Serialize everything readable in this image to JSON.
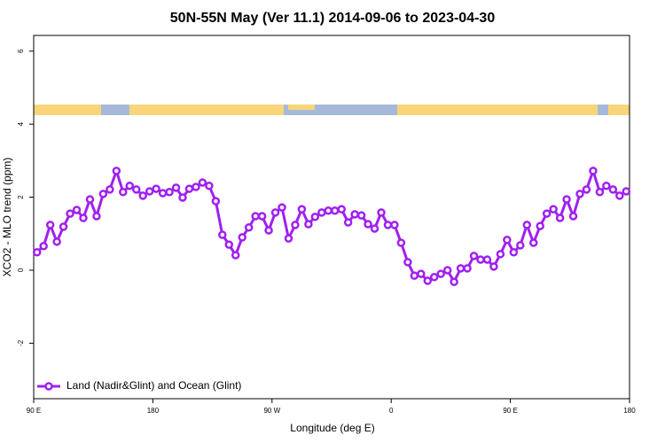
{
  "chart_data": {
    "type": "line",
    "title": "50N-55N May (Ver 11.1)   2014-09-06 to 2023-04-30",
    "x_label": "Longitude (deg E)",
    "y_label": "XCO2 - MLO trend (ppm)",
    "xlim": [
      90,
      540
    ],
    "xticks": [
      {
        "value": 90,
        "label": "90 E"
      },
      180,
      {
        "value": 270,
        "label": "90 W"
      },
      {
        "value": 360,
        "label": "0"
      },
      {
        "value": 450,
        "label": "90 E"
      },
      {
        "value": 540,
        "label": "180"
      }
    ],
    "ylim": [
      -3.52,
      6.43
    ],
    "yticks": [
      -2,
      0,
      2,
      4,
      6
    ],
    "legend": "bottom left",
    "x": [
      92.5,
      97.5,
      102.5,
      107.5,
      112.5,
      117.5,
      122.5,
      127.5,
      132.5,
      137.5,
      142.5,
      147.5,
      152.5,
      157.5,
      162.5,
      167.5,
      172.5,
      177.5,
      182.5,
      187.5,
      192.5,
      197.5,
      202.5,
      207.5,
      212.5,
      217.5,
      222.5,
      227.5,
      232.5,
      237.5,
      242.5,
      247.5,
      252.5,
      257.5,
      262.5,
      267.5,
      272.5,
      277.5,
      282.5,
      287.5,
      292.5,
      297.5,
      302.5,
      307.5,
      312.5,
      317.5,
      322.5,
      327.5,
      332.5,
      337.5,
      342.5,
      347.5,
      352.5,
      357.5,
      362.5,
      367.5,
      372.5,
      377.5,
      382.5,
      387.5,
      392.5,
      397.5,
      402.5,
      407.5,
      412.5,
      417.5,
      422.5,
      427.5,
      432.5,
      437.5,
      442.5,
      447.5,
      452.5,
      457.5,
      462.5,
      467.5,
      472.5,
      477.5,
      482.5,
      487.5,
      492.5,
      497.5,
      502.5,
      507.5,
      512.5,
      517.5,
      522.5,
      527.5,
      532.5,
      537.5
    ],
    "series": [
      {
        "name": "Land (Nadir&Glint) and Ocean (Glint)",
        "color": "#a020f0",
        "values": [
          0.49,
          0.66,
          1.24,
          0.78,
          1.19,
          1.55,
          1.65,
          1.43,
          1.94,
          1.48,
          2.09,
          2.21,
          2.72,
          2.14,
          2.31,
          2.21,
          2.04,
          2.16,
          2.23,
          2.11,
          2.14,
          2.26,
          1.99,
          2.23,
          2.28,
          2.4,
          2.31,
          1.89,
          0.97,
          0.7,
          0.41,
          0.9,
          1.17,
          1.48,
          1.48,
          1.09,
          1.58,
          1.72,
          0.87,
          1.24,
          1.67,
          1.26,
          1.46,
          1.58,
          1.63,
          1.63,
          1.67,
          1.31,
          1.53,
          1.5,
          1.26,
          1.14,
          1.58,
          1.24,
          1.24,
          0.75,
          0.22,
          -0.15,
          -0.1,
          -0.29,
          -0.19,
          -0.1,
          0.0,
          -0.32,
          0.05,
          0.05,
          0.39,
          0.29,
          0.29,
          0.1,
          0.44,
          0.83,
          0.49,
          0.68,
          1.24,
          0.75,
          1.21,
          1.55,
          1.67,
          1.43,
          1.94,
          1.48,
          2.09,
          2.21,
          2.72,
          2.14,
          2.31,
          2.21,
          2.04,
          2.16
        ]
      }
    ]
  }
}
